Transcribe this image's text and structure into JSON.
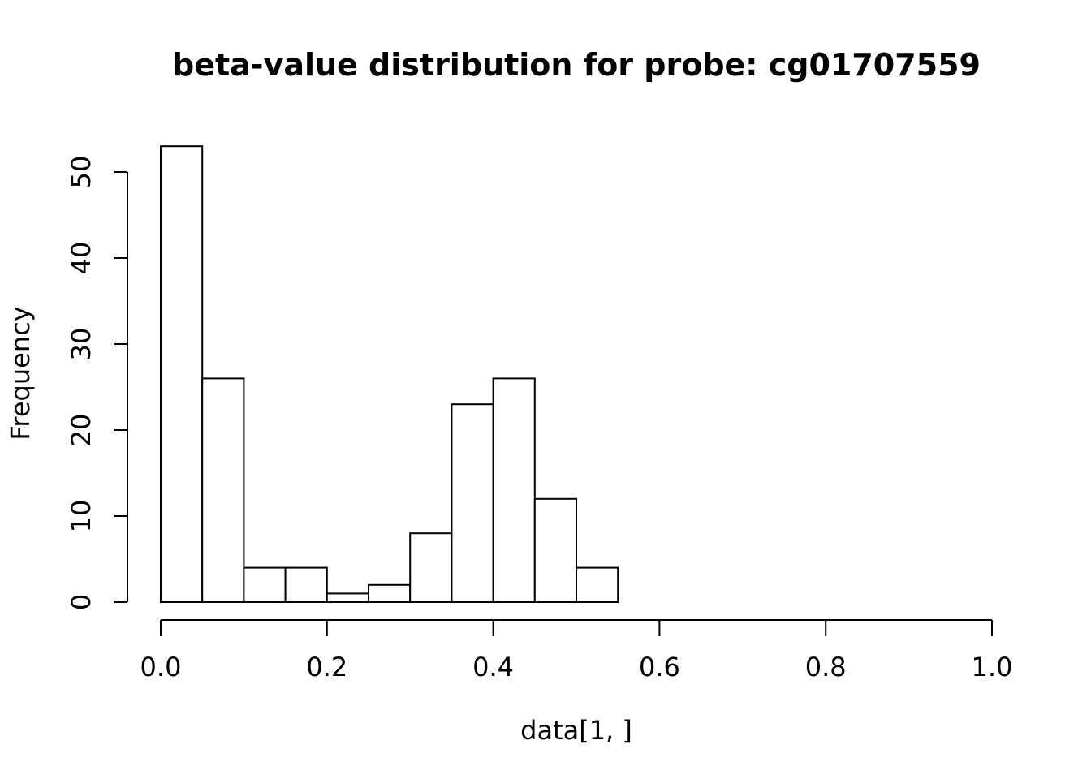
{
  "chart_data": {
    "type": "bar",
    "title": "beta-value distribution for probe: cg01707559",
    "xlabel": "data[1, ]",
    "ylabel": "Frequency",
    "xlim": [
      0,
      1
    ],
    "ylim": [
      0,
      53
    ],
    "grid": false,
    "bin_edges": [
      0.0,
      0.05,
      0.1,
      0.15,
      0.2,
      0.25,
      0.3,
      0.35,
      0.4,
      0.45,
      0.5,
      0.55
    ],
    "values": [
      53,
      26,
      4,
      4,
      1,
      2,
      8,
      23,
      26,
      12,
      4
    ],
    "x_ticks": [
      "0.0",
      "0.2",
      "0.4",
      "0.6",
      "0.8",
      "1.0"
    ],
    "y_ticks": [
      "0",
      "10",
      "20",
      "30",
      "40",
      "50"
    ],
    "bar_fill": "#ffffff",
    "bar_stroke": "#000000"
  }
}
